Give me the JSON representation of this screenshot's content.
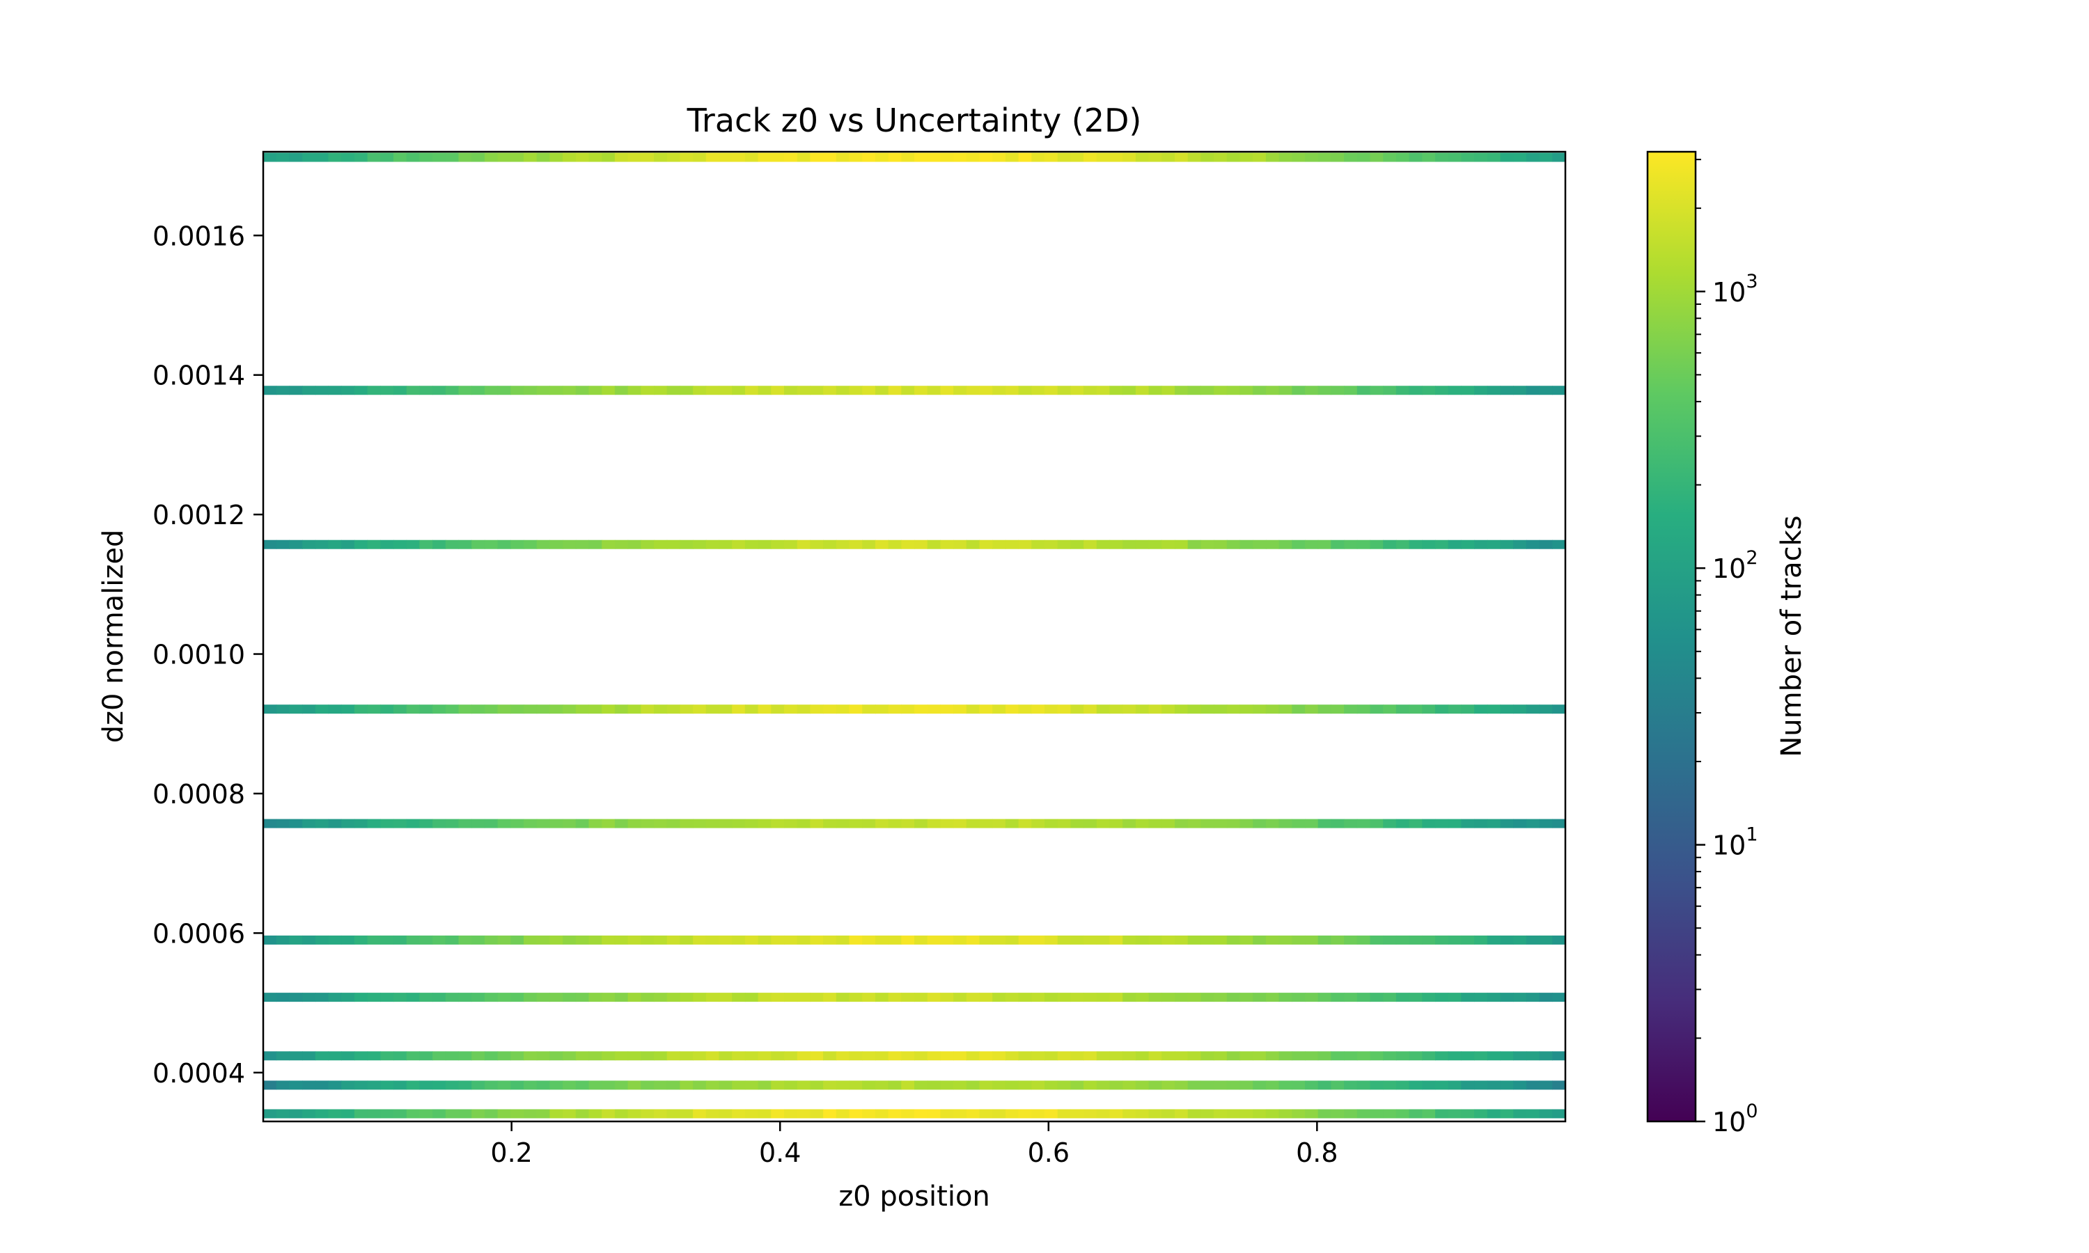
{
  "chart_data": {
    "type": "heatmap",
    "title": "Track z0 vs Uncertainty (2D)",
    "xlabel": "z0 position",
    "ylabel": "dz0 normalized",
    "xlim": [
      0.015,
      0.985
    ],
    "ylim": [
      0.00033,
      0.00172
    ],
    "x_ticks": [
      0.2,
      0.4,
      0.6,
      0.8
    ],
    "x_tick_labels": [
      "0.2",
      "0.4",
      "0.6",
      "0.8"
    ],
    "y_ticks": [
      0.0004,
      0.0006,
      0.0008,
      0.001,
      0.0012,
      0.0014,
      0.0016
    ],
    "y_tick_labels": [
      "0.0004",
      "0.0006",
      "0.0008",
      "0.0010",
      "0.0012",
      "0.0014",
      "0.0016"
    ],
    "x_bins": 100,
    "colorbar": {
      "label": "Number of tracks",
      "scale": "log",
      "colormap": "viridis",
      "range": [
        1,
        3200
      ],
      "ticks": [
        1,
        10,
        100,
        1000
      ],
      "tick_labels": [
        "10",
        "10",
        "10",
        "10"
      ],
      "tick_exponents": [
        "0",
        "1",
        "2",
        "3"
      ]
    },
    "rows": [
      {
        "y": 0.000341,
        "peak": 3000,
        "sigma": 0.18
      },
      {
        "y": 0.000382,
        "peak": 1300,
        "sigma": 0.18
      },
      {
        "y": 0.000424,
        "peak": 2300,
        "sigma": 0.18
      },
      {
        "y": 0.000508,
        "peak": 1800,
        "sigma": 0.18
      },
      {
        "y": 0.00059,
        "peak": 2500,
        "sigma": 0.18
      },
      {
        "y": 0.000757,
        "peak": 1600,
        "sigma": 0.18
      },
      {
        "y": 0.000921,
        "peak": 2500,
        "sigma": 0.18
      },
      {
        "y": 0.001157,
        "peak": 1800,
        "sigma": 0.18
      },
      {
        "y": 0.001378,
        "peak": 2000,
        "sigma": 0.18
      },
      {
        "y": 0.001712,
        "peak": 3100,
        "sigma": 0.18
      }
    ]
  }
}
